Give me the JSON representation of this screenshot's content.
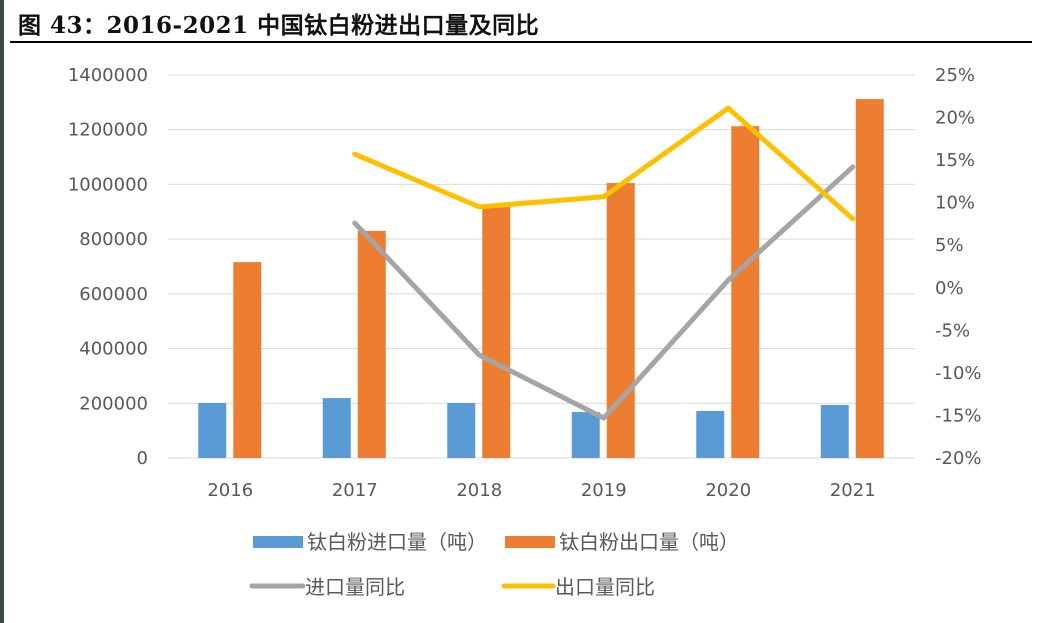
{
  "title": "图 43：2016-2021 中国钛白粉进出口量及同比",
  "chart_data": {
    "type": "bar+line",
    "title": "图 43：2016-2021 中国钛白粉进出口量及同比",
    "categories": [
      "2016",
      "2017",
      "2018",
      "2019",
      "2020",
      "2021"
    ],
    "bar_series": [
      {
        "name": "钛白粉进口量（吨）",
        "color": "#5b9bd5",
        "values": [
          201000,
          219000,
          201000,
          168000,
          172000,
          194000
        ]
      },
      {
        "name": "钛白粉出口量（吨）",
        "color": "#ed7d31",
        "values": [
          716000,
          830000,
          925000,
          1005000,
          1213000,
          1312000
        ]
      }
    ],
    "line_series": [
      {
        "name": "进口量同比",
        "color": "#a5a5a5",
        "values": [
          null,
          7.6,
          -7.9,
          -15.3,
          0.9,
          14.2
        ]
      },
      {
        "name": "出口量同比",
        "color": "#ffc000",
        "values": [
          null,
          15.7,
          9.5,
          10.7,
          21.1,
          8.1
        ]
      }
    ],
    "y_left": {
      "lim": [
        0,
        1400000
      ],
      "ticks": [
        "0",
        "200000",
        "400000",
        "600000",
        "800000",
        "1000000",
        "1200000",
        "1400000"
      ]
    },
    "y_right": {
      "lim": [
        -20,
        25
      ],
      "unit": "%",
      "ticks": [
        "-20%",
        "-15%",
        "-10%",
        "-5%",
        "0%",
        "5%",
        "10%",
        "15%",
        "20%",
        "25%"
      ]
    },
    "grid": true,
    "legend": "bottom"
  }
}
